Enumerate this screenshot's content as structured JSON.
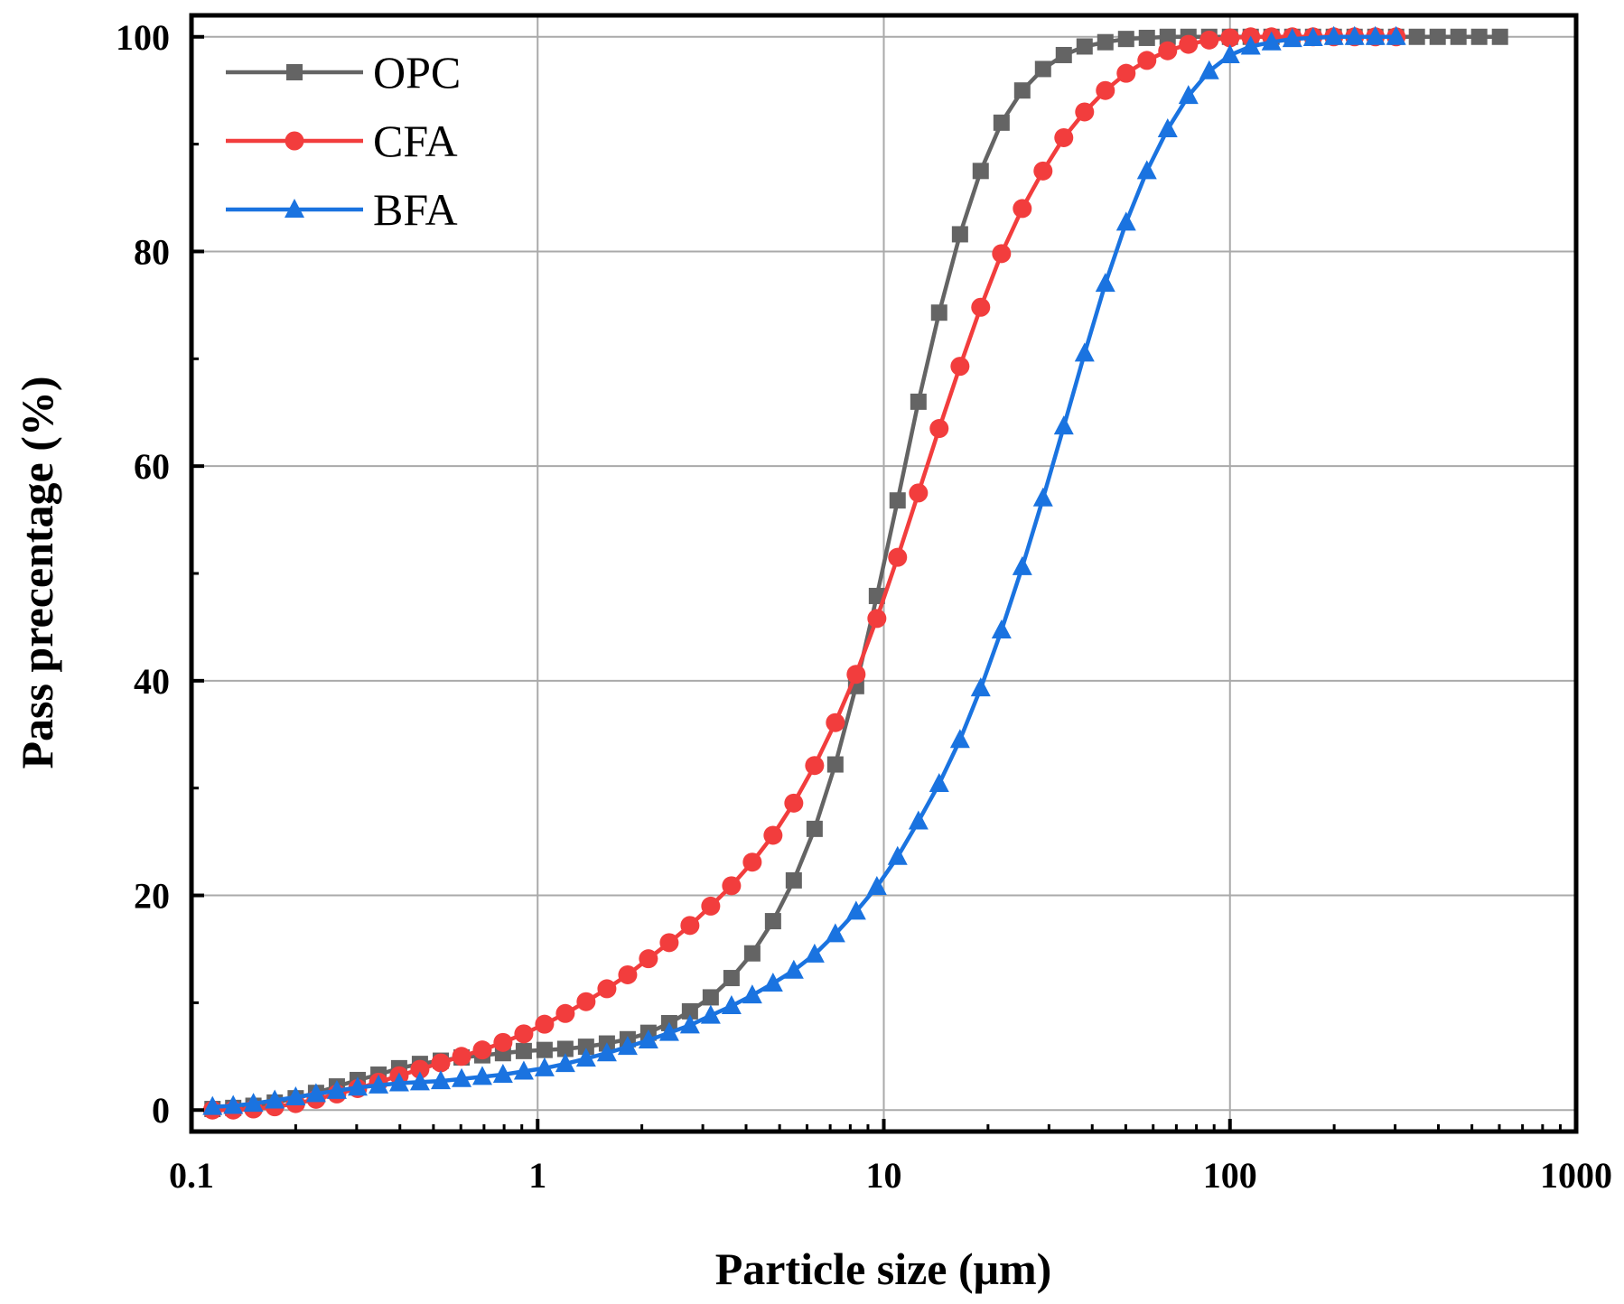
{
  "chart_data": {
    "type": "line",
    "title": "",
    "xlabel": "Particle size (μm)",
    "ylabel": "Pass precentage (%)",
    "x_scale": "log",
    "xlim": [
      0.1,
      1000
    ],
    "ylim": [
      -2,
      102
    ],
    "grid": true,
    "legend_position": "top-left",
    "x_ticks": [
      {
        "value": 0.1,
        "label": "0.1"
      },
      {
        "value": 1,
        "label": "1"
      },
      {
        "value": 10,
        "label": "10"
      },
      {
        "value": 100,
        "label": "100"
      },
      {
        "value": 1000,
        "label": "1000"
      }
    ],
    "y_ticks": [
      {
        "value": 0,
        "label": "0"
      },
      {
        "value": 20,
        "label": "20"
      },
      {
        "value": 40,
        "label": "40"
      },
      {
        "value": 60,
        "label": "60"
      },
      {
        "value": 80,
        "label": "80"
      },
      {
        "value": 100,
        "label": "100"
      }
    ],
    "series": [
      {
        "name": "OPC",
        "color": "#646464",
        "marker": "square",
        "x": [
          0.115,
          0.132,
          0.151,
          0.174,
          0.2,
          0.229,
          0.263,
          0.302,
          0.347,
          0.398,
          0.457,
          0.525,
          0.603,
          0.692,
          0.794,
          0.912,
          1.047,
          1.202,
          1.38,
          1.585,
          1.82,
          2.089,
          2.399,
          2.754,
          3.162,
          3.631,
          4.169,
          4.786,
          5.495,
          6.31,
          7.244,
          8.318,
          9.55,
          10.96,
          12.59,
          14.45,
          16.6,
          19.05,
          21.88,
          25.12,
          28.84,
          33.11,
          38.02,
          43.65,
          50.12,
          57.54,
          66.07,
          75.86,
          87.1,
          100.0,
          114.8,
          131.8,
          151.4,
          173.8,
          199.5,
          229.1,
          263.0,
          302.0,
          346.7,
          398.1,
          457.1,
          524.8,
          602.6
        ],
        "y": [
          0.1,
          0.2,
          0.4,
          0.7,
          1.1,
          1.6,
          2.2,
          2.8,
          3.3,
          3.9,
          4.3,
          4.6,
          4.9,
          5.1,
          5.3,
          5.5,
          5.6,
          5.7,
          5.9,
          6.2,
          6.6,
          7.2,
          8.1,
          9.2,
          10.5,
          12.3,
          14.6,
          17.6,
          21.4,
          26.2,
          32.2,
          39.5,
          47.9,
          56.8,
          66.0,
          74.3,
          81.6,
          87.5,
          92.0,
          95.0,
          97.0,
          98.3,
          99.1,
          99.5,
          99.8,
          99.9,
          100,
          100,
          100,
          100,
          100,
          100,
          100,
          100,
          100,
          100,
          100,
          100,
          100,
          100,
          100,
          100,
          100
        ]
      },
      {
        "name": "CFA",
        "color": "#f23d3d",
        "marker": "circle",
        "x": [
          0.115,
          0.132,
          0.151,
          0.174,
          0.2,
          0.229,
          0.263,
          0.302,
          0.347,
          0.398,
          0.457,
          0.525,
          0.603,
          0.692,
          0.794,
          0.912,
          1.047,
          1.202,
          1.38,
          1.585,
          1.82,
          2.089,
          2.399,
          2.754,
          3.162,
          3.631,
          4.169,
          4.786,
          5.495,
          6.31,
          7.244,
          8.318,
          9.55,
          10.96,
          12.59,
          14.45,
          16.6,
          19.05,
          21.88,
          25.12,
          28.84,
          33.11,
          38.02,
          43.65,
          50.12,
          57.54,
          66.07,
          75.86,
          87.1,
          100.0,
          114.8,
          131.8,
          151.4,
          173.8,
          199.5,
          229.1,
          263.0,
          302.0
        ],
        "y": [
          0.0,
          0.0,
          0.1,
          0.3,
          0.6,
          1.0,
          1.5,
          2.0,
          2.6,
          3.2,
          3.8,
          4.4,
          5.0,
          5.6,
          6.3,
          7.1,
          8.0,
          9.0,
          10.1,
          11.3,
          12.6,
          14.1,
          15.6,
          17.2,
          19.0,
          20.9,
          23.1,
          25.6,
          28.6,
          32.1,
          36.1,
          40.6,
          45.8,
          51.5,
          57.5,
          63.5,
          69.3,
          74.8,
          79.8,
          84.0,
          87.5,
          90.6,
          93.0,
          95.0,
          96.6,
          97.8,
          98.7,
          99.3,
          99.7,
          99.9,
          100,
          100,
          100,
          100,
          100,
          100,
          100,
          100
        ]
      },
      {
        "name": "BFA",
        "color": "#1a73e0",
        "marker": "triangle",
        "x": [
          0.115,
          0.132,
          0.151,
          0.174,
          0.2,
          0.229,
          0.263,
          0.302,
          0.347,
          0.398,
          0.457,
          0.525,
          0.603,
          0.692,
          0.794,
          0.912,
          1.047,
          1.202,
          1.38,
          1.585,
          1.82,
          2.089,
          2.399,
          2.754,
          3.162,
          3.631,
          4.169,
          4.786,
          5.495,
          6.31,
          7.244,
          8.318,
          9.55,
          10.96,
          12.59,
          14.45,
          16.6,
          19.05,
          21.88,
          25.12,
          28.84,
          33.11,
          38.02,
          43.65,
          50.12,
          57.54,
          66.07,
          75.86,
          87.1,
          100.0,
          114.8,
          131.8,
          151.4,
          173.8,
          199.5,
          229.1,
          263.0,
          302.0
        ],
        "y": [
          0.3,
          0.4,
          0.6,
          0.9,
          1.2,
          1.5,
          1.8,
          2.1,
          2.3,
          2.5,
          2.6,
          2.7,
          2.9,
          3.1,
          3.3,
          3.6,
          3.9,
          4.3,
          4.8,
          5.3,
          5.9,
          6.5,
          7.2,
          7.9,
          8.8,
          9.7,
          10.7,
          11.8,
          13.0,
          14.5,
          16.4,
          18.5,
          20.8,
          23.6,
          26.9,
          30.4,
          34.5,
          39.3,
          44.7,
          50.6,
          57.0,
          63.7,
          70.5,
          77.0,
          82.7,
          87.5,
          91.4,
          94.5,
          96.8,
          98.3,
          99.1,
          99.5,
          99.8,
          99.9,
          100,
          100,
          100,
          100
        ]
      }
    ]
  }
}
